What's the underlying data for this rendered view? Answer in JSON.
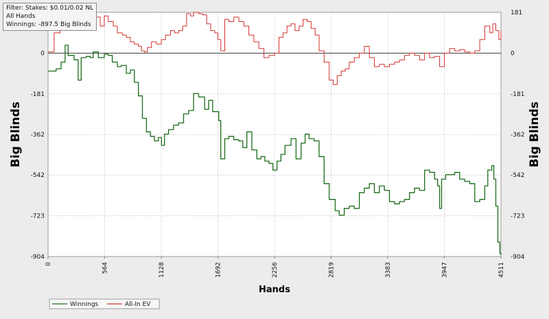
{
  "filter_box": {
    "line1": "Filter: Stakes: $0.01/0.02 NL",
    "line2": "All Hands",
    "line3": "Winnings: -897.5 Big Blinds"
  },
  "colors": {
    "winnings": "#1a6b1a",
    "allin_ev": "#d0302c",
    "zero_line": "#000000",
    "grid": "#9a9a9a",
    "plot_bg": "#ffffff",
    "page_bg": "#ececec"
  },
  "chart_data": {
    "type": "line",
    "title": "",
    "xlabel": "Hands",
    "ylabel_left": "Big Blinds",
    "ylabel_right": "Big Blinds",
    "xlim": [
      0,
      4511
    ],
    "ylim": [
      -904,
      181
    ],
    "x_ticks": [
      0,
      564,
      1128,
      1692,
      2256,
      2819,
      3383,
      3947,
      4511
    ],
    "y_ticks": [
      181,
      0,
      -181,
      -362,
      -542,
      -723,
      -904
    ],
    "grid": true,
    "legend_position": "bottom-left",
    "series": [
      {
        "name": "Winnings",
        "color": "#1a6b1a",
        "points": [
          [
            0,
            -80
          ],
          [
            80,
            -70
          ],
          [
            130,
            -40
          ],
          [
            170,
            35
          ],
          [
            200,
            -10
          ],
          [
            260,
            -30
          ],
          [
            300,
            -120
          ],
          [
            330,
            -20
          ],
          [
            380,
            -15
          ],
          [
            420,
            -20
          ],
          [
            450,
            5
          ],
          [
            500,
            -20
          ],
          [
            560,
            -5
          ],
          [
            600,
            -10
          ],
          [
            640,
            -40
          ],
          [
            690,
            -60
          ],
          [
            730,
            -55
          ],
          [
            780,
            -90
          ],
          [
            820,
            -75
          ],
          [
            860,
            -130
          ],
          [
            900,
            -190
          ],
          [
            940,
            -290
          ],
          [
            980,
            -350
          ],
          [
            1020,
            -370
          ],
          [
            1060,
            -390
          ],
          [
            1100,
            -375
          ],
          [
            1130,
            -410
          ],
          [
            1160,
            -360
          ],
          [
            1200,
            -340
          ],
          [
            1250,
            -320
          ],
          [
            1300,
            -310
          ],
          [
            1350,
            -270
          ],
          [
            1400,
            -255
          ],
          [
            1450,
            -180
          ],
          [
            1500,
            -195
          ],
          [
            1560,
            -250
          ],
          [
            1600,
            -210
          ],
          [
            1640,
            -260
          ],
          [
            1700,
            -300
          ],
          [
            1720,
            -470
          ],
          [
            1760,
            -380
          ],
          [
            1800,
            -370
          ],
          [
            1850,
            -385
          ],
          [
            1900,
            -390
          ],
          [
            1940,
            -420
          ],
          [
            1980,
            -350
          ],
          [
            2030,
            -430
          ],
          [
            2080,
            -470
          ],
          [
            2120,
            -460
          ],
          [
            2160,
            -480
          ],
          [
            2200,
            -490
          ],
          [
            2240,
            -520
          ],
          [
            2280,
            -480
          ],
          [
            2320,
            -450
          ],
          [
            2360,
            -410
          ],
          [
            2420,
            -380
          ],
          [
            2470,
            -470
          ],
          [
            2520,
            -400
          ],
          [
            2560,
            -360
          ],
          [
            2600,
            -380
          ],
          [
            2650,
            -390
          ],
          [
            2700,
            -460
          ],
          [
            2750,
            -580
          ],
          [
            2800,
            -650
          ],
          [
            2860,
            -700
          ],
          [
            2900,
            -720
          ],
          [
            2950,
            -690
          ],
          [
            3000,
            -680
          ],
          [
            3050,
            -690
          ],
          [
            3100,
            -620
          ],
          [
            3150,
            -600
          ],
          [
            3200,
            -580
          ],
          [
            3250,
            -620
          ],
          [
            3300,
            -590
          ],
          [
            3350,
            -610
          ],
          [
            3400,
            -660
          ],
          [
            3450,
            -670
          ],
          [
            3500,
            -660
          ],
          [
            3550,
            -650
          ],
          [
            3600,
            -620
          ],
          [
            3650,
            -600
          ],
          [
            3700,
            -610
          ],
          [
            3750,
            -520
          ],
          [
            3800,
            -530
          ],
          [
            3850,
            -560
          ],
          [
            3880,
            -590
          ],
          [
            3900,
            -690
          ],
          [
            3920,
            -560
          ],
          [
            3960,
            -540
          ],
          [
            4000,
            -540
          ],
          [
            4050,
            -530
          ],
          [
            4100,
            -560
          ],
          [
            4150,
            -570
          ],
          [
            4200,
            -580
          ],
          [
            4250,
            -660
          ],
          [
            4300,
            -650
          ],
          [
            4350,
            -590
          ],
          [
            4380,
            -520
          ],
          [
            4420,
            -500
          ],
          [
            4440,
            -560
          ],
          [
            4460,
            -680
          ],
          [
            4480,
            -840
          ],
          [
            4500,
            -890
          ],
          [
            4511,
            -897
          ]
        ]
      },
      {
        "name": "All-In EV",
        "color": "#d0302c",
        "points": [
          [
            0,
            5
          ],
          [
            60,
            90
          ],
          [
            120,
            150
          ],
          [
            180,
            165
          ],
          [
            230,
            175
          ],
          [
            280,
            170
          ],
          [
            320,
            150
          ],
          [
            370,
            170
          ],
          [
            420,
            140
          ],
          [
            460,
            160
          ],
          [
            520,
            120
          ],
          [
            560,
            165
          ],
          [
            600,
            140
          ],
          [
            650,
            120
          ],
          [
            690,
            90
          ],
          [
            740,
            80
          ],
          [
            780,
            70
          ],
          [
            820,
            50
          ],
          [
            860,
            40
          ],
          [
            900,
            30
          ],
          [
            930,
            10
          ],
          [
            960,
            5
          ],
          [
            990,
            25
          ],
          [
            1030,
            50
          ],
          [
            1080,
            40
          ],
          [
            1128,
            60
          ],
          [
            1170,
            80
          ],
          [
            1220,
            100
          ],
          [
            1260,
            90
          ],
          [
            1300,
            100
          ],
          [
            1340,
            120
          ],
          [
            1380,
            175
          ],
          [
            1420,
            165
          ],
          [
            1450,
            181
          ],
          [
            1500,
            175
          ],
          [
            1540,
            170
          ],
          [
            1580,
            130
          ],
          [
            1620,
            100
          ],
          [
            1660,
            90
          ],
          [
            1692,
            60
          ],
          [
            1720,
            10
          ],
          [
            1760,
            150
          ],
          [
            1800,
            140
          ],
          [
            1850,
            160
          ],
          [
            1900,
            140
          ],
          [
            1950,
            120
          ],
          [
            2000,
            80
          ],
          [
            2050,
            50
          ],
          [
            2100,
            20
          ],
          [
            2150,
            -20
          ],
          [
            2200,
            -10
          ],
          [
            2256,
            0
          ],
          [
            2300,
            70
          ],
          [
            2340,
            90
          ],
          [
            2380,
            120
          ],
          [
            2420,
            130
          ],
          [
            2460,
            100
          ],
          [
            2500,
            120
          ],
          [
            2540,
            150
          ],
          [
            2580,
            140
          ],
          [
            2620,
            110
          ],
          [
            2660,
            80
          ],
          [
            2700,
            10
          ],
          [
            2750,
            -40
          ],
          [
            2800,
            -120
          ],
          [
            2840,
            -140
          ],
          [
            2880,
            -100
          ],
          [
            2920,
            -80
          ],
          [
            2960,
            -70
          ],
          [
            3000,
            -40
          ],
          [
            3050,
            -20
          ],
          [
            3100,
            0
          ],
          [
            3150,
            30
          ],
          [
            3200,
            -20
          ],
          [
            3250,
            -60
          ],
          [
            3300,
            -50
          ],
          [
            3350,
            -60
          ],
          [
            3400,
            -50
          ],
          [
            3450,
            -40
          ],
          [
            3500,
            -30
          ],
          [
            3550,
            -10
          ],
          [
            3600,
            0
          ],
          [
            3650,
            -10
          ],
          [
            3700,
            -30
          ],
          [
            3750,
            0
          ],
          [
            3800,
            -20
          ],
          [
            3850,
            -15
          ],
          [
            3900,
            -60
          ],
          [
            3947,
            0
          ],
          [
            4000,
            20
          ],
          [
            4050,
            10
          ],
          [
            4100,
            15
          ],
          [
            4150,
            5
          ],
          [
            4200,
            0
          ],
          [
            4250,
            10
          ],
          [
            4300,
            60
          ],
          [
            4350,
            120
          ],
          [
            4400,
            90
          ],
          [
            4430,
            130
          ],
          [
            4460,
            100
          ],
          [
            4490,
            60
          ],
          [
            4511,
            100
          ]
        ]
      }
    ]
  }
}
